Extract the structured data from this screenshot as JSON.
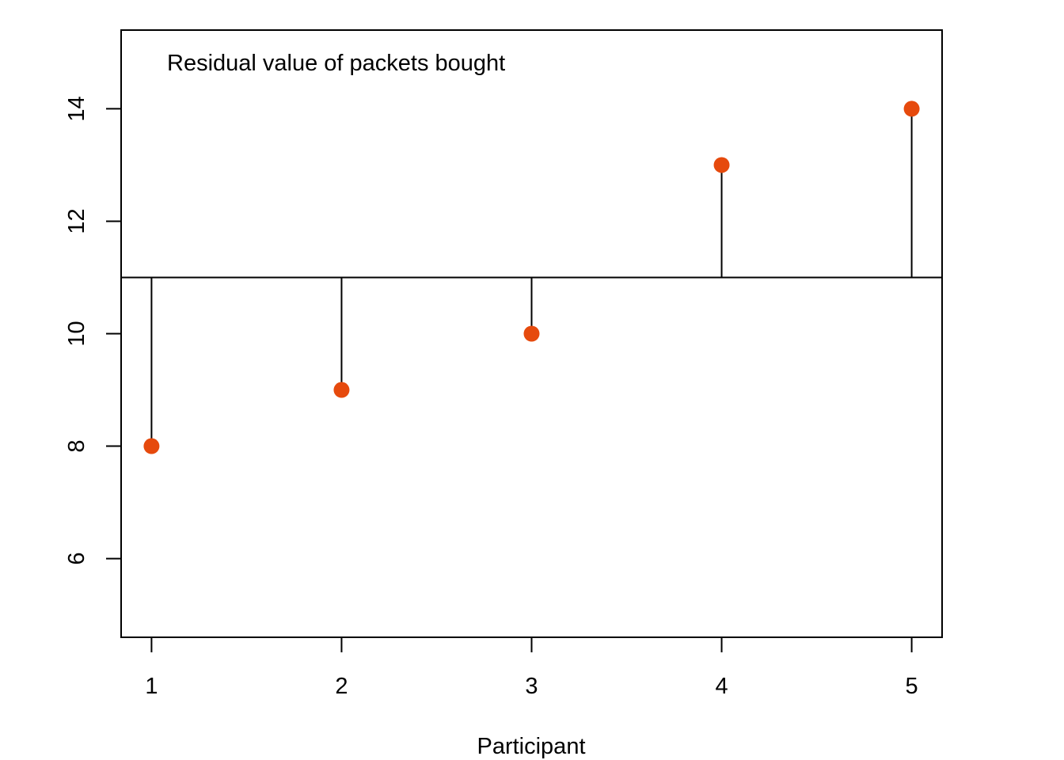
{
  "chart_data": {
    "type": "scatter",
    "title": "",
    "annotation": "Residual value of packets bought",
    "xlabel": "Participant",
    "ylabel": "",
    "x": [
      1,
      2,
      3,
      4,
      5
    ],
    "values": [
      8,
      9,
      10,
      13,
      14
    ],
    "reference_line": 11,
    "xlim": [
      0.84,
      5.16
    ],
    "ylim": [
      4.6,
      15.4
    ],
    "x_ticks": [
      "1",
      "2",
      "3",
      "4",
      "5"
    ],
    "y_ticks": [
      "6",
      "8",
      "10",
      "12",
      "14"
    ],
    "grid": false,
    "point_color": "#E64A0D",
    "line_color": "#000000"
  }
}
